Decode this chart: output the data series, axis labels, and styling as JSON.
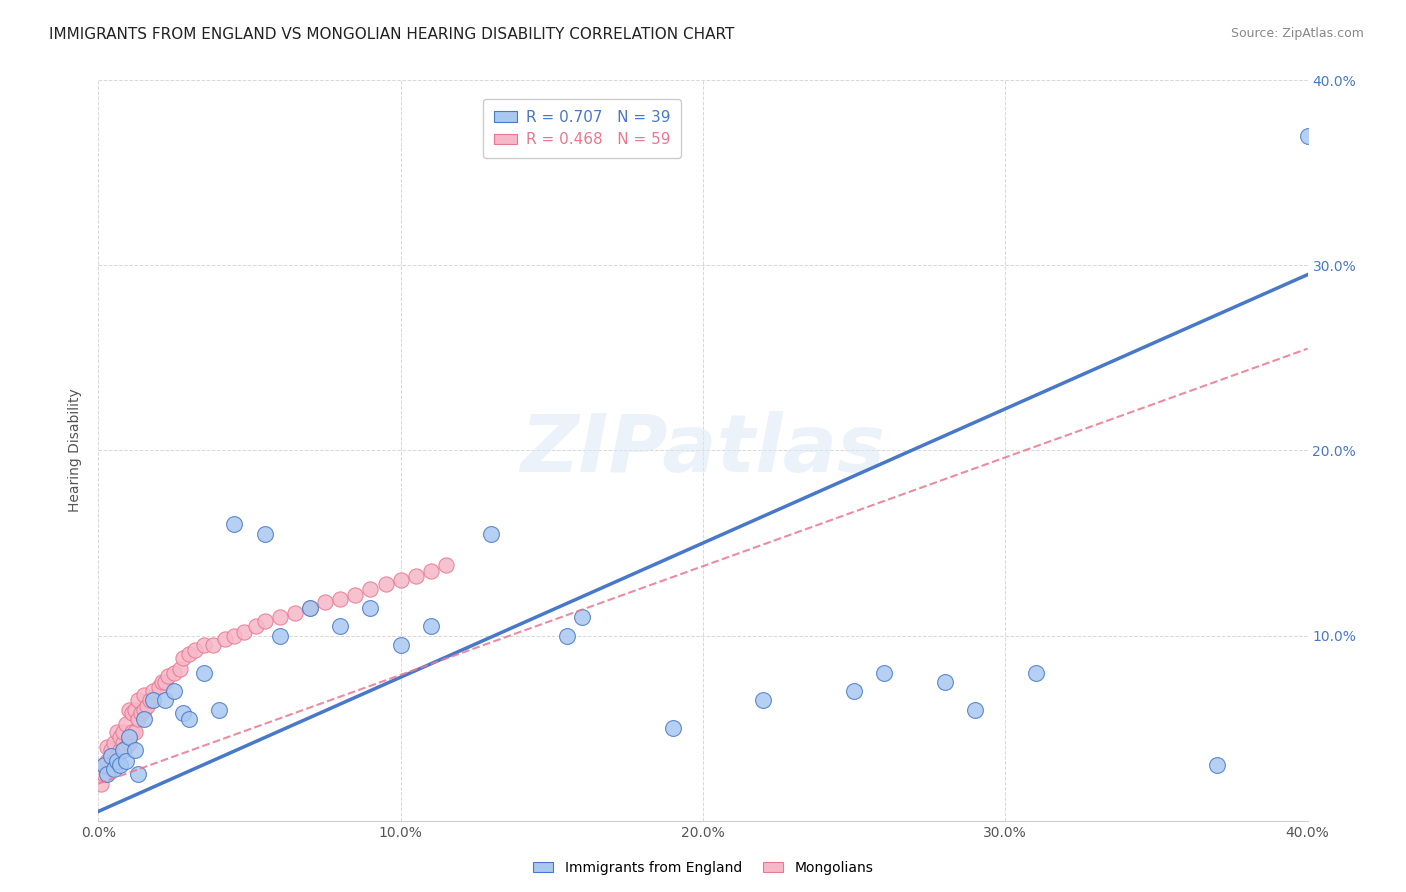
{
  "title": "IMMIGRANTS FROM ENGLAND VS MONGOLIAN HEARING DISABILITY CORRELATION CHART",
  "source": "Source: ZipAtlas.com",
  "ylabel": "Hearing Disability",
  "xlim": [
    0.0,
    0.4
  ],
  "ylim": [
    0.0,
    0.4
  ],
  "xticks": [
    0.0,
    0.1,
    0.2,
    0.3,
    0.4
  ],
  "yticks": [
    0.0,
    0.1,
    0.2,
    0.3,
    0.4
  ],
  "xtick_labels": [
    "0.0%",
    "10.0%",
    "20.0%",
    "30.0%",
    "40.0%"
  ],
  "ytick_labels": [
    "",
    "10.0%",
    "20.0%",
    "30.0%",
    "40.0%"
  ],
  "color_england": "#a8c8f0",
  "color_mongolian": "#f5b8c8",
  "line_color_england": "#4878c8",
  "line_color_mongolian": "#e87890",
  "R_england": 0.707,
  "N_england": 39,
  "R_mongolian": 0.468,
  "N_mongolian": 59,
  "england_x": [
    0.002,
    0.003,
    0.004,
    0.005,
    0.006,
    0.007,
    0.008,
    0.009,
    0.01,
    0.012,
    0.013,
    0.015,
    0.018,
    0.022,
    0.025,
    0.028,
    0.03,
    0.035,
    0.04,
    0.045,
    0.055,
    0.06,
    0.07,
    0.08,
    0.09,
    0.1,
    0.11,
    0.13,
    0.155,
    0.16,
    0.19,
    0.22,
    0.25,
    0.26,
    0.28,
    0.29,
    0.31,
    0.37,
    0.4
  ],
  "england_y": [
    0.03,
    0.025,
    0.035,
    0.028,
    0.032,
    0.03,
    0.038,
    0.032,
    0.045,
    0.038,
    0.025,
    0.055,
    0.065,
    0.065,
    0.07,
    0.058,
    0.055,
    0.08,
    0.06,
    0.16,
    0.155,
    0.1,
    0.115,
    0.105,
    0.115,
    0.095,
    0.105,
    0.155,
    0.1,
    0.11,
    0.05,
    0.065,
    0.07,
    0.08,
    0.075,
    0.06,
    0.08,
    0.03,
    0.37
  ],
  "mongolian_x": [
    0.001,
    0.002,
    0.002,
    0.003,
    0.003,
    0.004,
    0.004,
    0.005,
    0.005,
    0.006,
    0.006,
    0.007,
    0.007,
    0.008,
    0.008,
    0.009,
    0.009,
    0.01,
    0.01,
    0.011,
    0.011,
    0.012,
    0.012,
    0.013,
    0.013,
    0.014,
    0.015,
    0.015,
    0.016,
    0.017,
    0.018,
    0.02,
    0.021,
    0.022,
    0.023,
    0.025,
    0.027,
    0.028,
    0.03,
    0.032,
    0.035,
    0.038,
    0.042,
    0.045,
    0.048,
    0.052,
    0.055,
    0.06,
    0.065,
    0.07,
    0.075,
    0.08,
    0.085,
    0.09,
    0.095,
    0.1,
    0.105,
    0.11,
    0.115
  ],
  "mongolian_y": [
    0.02,
    0.025,
    0.03,
    0.032,
    0.04,
    0.028,
    0.038,
    0.032,
    0.042,
    0.035,
    0.048,
    0.038,
    0.045,
    0.042,
    0.048,
    0.04,
    0.052,
    0.042,
    0.06,
    0.048,
    0.058,
    0.048,
    0.06,
    0.055,
    0.065,
    0.058,
    0.06,
    0.068,
    0.062,
    0.065,
    0.07,
    0.072,
    0.075,
    0.075,
    0.078,
    0.08,
    0.082,
    0.088,
    0.09,
    0.092,
    0.095,
    0.095,
    0.098,
    0.1,
    0.102,
    0.105,
    0.108,
    0.11,
    0.112,
    0.115,
    0.118,
    0.12,
    0.122,
    0.125,
    0.128,
    0.13,
    0.132,
    0.135,
    0.138
  ],
  "eng_line_x": [
    0.0,
    0.4
  ],
  "eng_line_y": [
    0.005,
    0.295
  ],
  "mon_line_x": [
    0.0,
    0.4
  ],
  "mon_line_y": [
    0.02,
    0.255
  ],
  "watermark_text": "ZIPatlas",
  "background_color": "#ffffff",
  "grid_color": "#d8d8d8",
  "title_fontsize": 11,
  "axis_label_fontsize": 10,
  "tick_fontsize": 10,
  "legend_fontsize": 11
}
